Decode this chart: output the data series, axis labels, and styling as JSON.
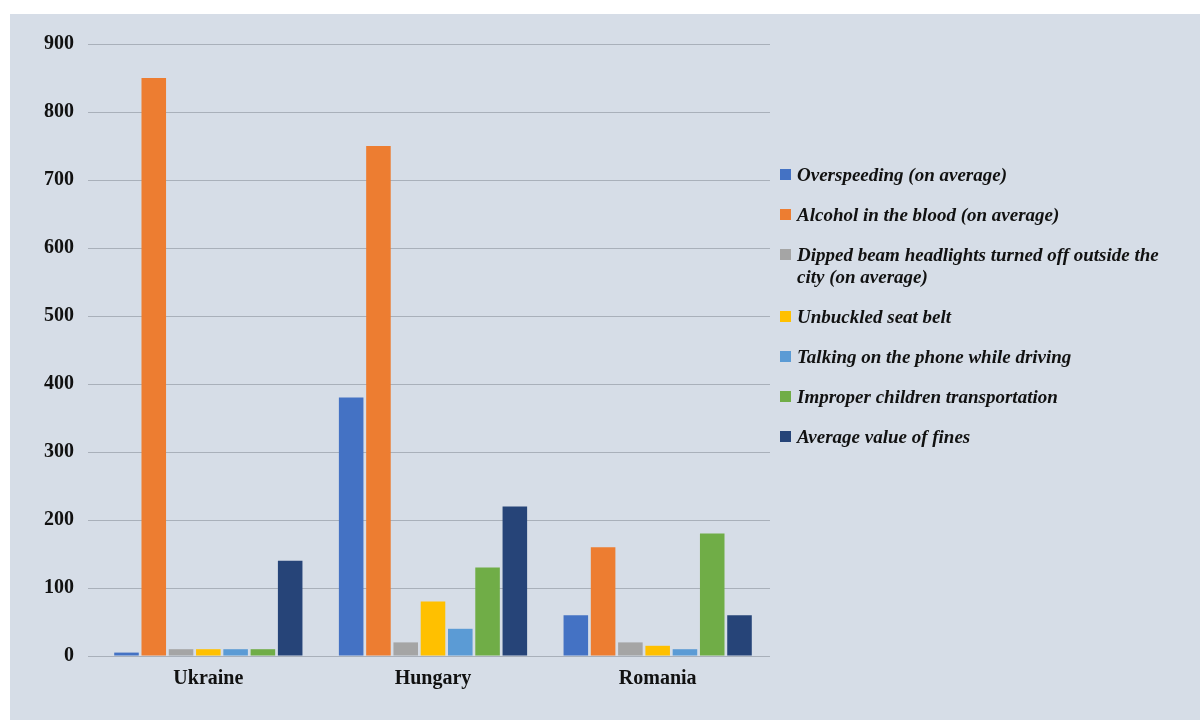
{
  "chart_data": {
    "type": "bar",
    "categories": [
      "Ukraine",
      "Hungary",
      "Romania"
    ],
    "series": [
      {
        "name": "Overspeeding (on average)",
        "color": "#4472c4",
        "values": [
          5,
          380,
          60
        ]
      },
      {
        "name": "Alcohol in the blood (on average)",
        "color": "#ed7d31",
        "values": [
          850,
          750,
          160
        ]
      },
      {
        "name": "Dipped beam headlights turned off outside the city (on average)",
        "color": "#a5a5a5",
        "values": [
          10,
          20,
          20
        ]
      },
      {
        "name": "Unbuckled seat belt",
        "color": "#ffc000",
        "values": [
          10,
          80,
          15
        ]
      },
      {
        "name": "Talking on the phone while driving",
        "color": "#5b9bd5",
        "values": [
          10,
          40,
          10
        ]
      },
      {
        "name": "Improper children transportation",
        "color": "#70ad47",
        "values": [
          10,
          130,
          180
        ]
      },
      {
        "name": "Average value of fines",
        "color": "#264478",
        "values": [
          140,
          220,
          60
        ]
      }
    ],
    "ylim": [
      0,
      900
    ],
    "yticks": [
      0,
      100,
      200,
      300,
      400,
      500,
      600,
      700,
      800,
      900
    ],
    "grid": "y",
    "legend": "right"
  }
}
